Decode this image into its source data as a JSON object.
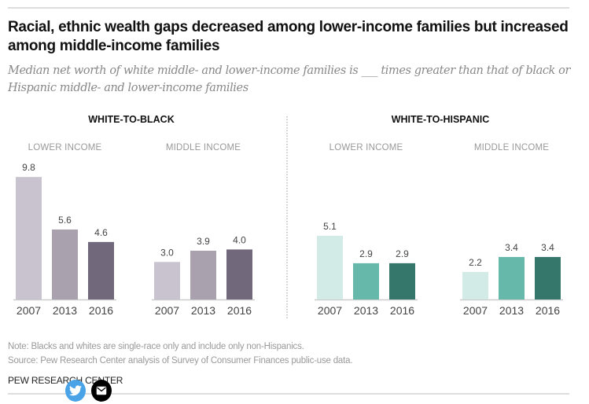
{
  "header": {
    "title": "Racial, ethnic wealth gaps decreased among lower-income families but increased among middle-income families",
    "subtitle": "Median net worth of white middle- and lower-income families is ___ times greater than that of black or Hispanic middle- and lower-income families"
  },
  "chart_data": [
    {
      "type": "bar",
      "title": "WHITE-TO-BLACK",
      "panels": [
        {
          "subtitle": "LOWER INCOME",
          "categories": [
            "2007",
            "2013",
            "2016"
          ],
          "values": [
            9.8,
            5.6,
            4.6
          ],
          "labels": [
            "9.8",
            "5.6",
            "4.6"
          ]
        },
        {
          "subtitle": "MIDDLE INCOME",
          "categories": [
            "2007",
            "2013",
            "2016"
          ],
          "values": [
            3.0,
            3.9,
            4.0
          ],
          "labels": [
            "3.0",
            "3.9",
            "4.0"
          ]
        }
      ],
      "colors": [
        "#c9c3cf",
        "#a9a1ae",
        "#72687c"
      ],
      "ylim": [
        0,
        10
      ]
    },
    {
      "type": "bar",
      "title": "WHITE-TO-HISPANIC",
      "panels": [
        {
          "subtitle": "LOWER INCOME",
          "categories": [
            "2007",
            "2013",
            "2016"
          ],
          "values": [
            5.1,
            2.9,
            2.9
          ],
          "labels": [
            "5.1",
            "2.9",
            "2.9"
          ]
        },
        {
          "subtitle": "MIDDLE INCOME",
          "categories": [
            "2007",
            "2013",
            "2016"
          ],
          "values": [
            2.2,
            3.4,
            3.4
          ],
          "labels": [
            "2.2",
            "3.4",
            "3.4"
          ]
        }
      ],
      "colors": [
        "#d3ebe6",
        "#66b8aa",
        "#35776a"
      ],
      "ylim": [
        0,
        10
      ]
    }
  ],
  "footer": {
    "note": "Note: Blacks and whites are single-race only and include only non-Hispanics.",
    "source": "Source: Pew Research Center analysis of Survey of Consumer Finances public-use data.",
    "org": "PEW RESEARCH CENTER"
  },
  "share": {
    "twitter_icon": "twitter-icon",
    "email_icon": "email-icon",
    "twitter_color": "#4aa3e6",
    "email_color": "#000000"
  }
}
